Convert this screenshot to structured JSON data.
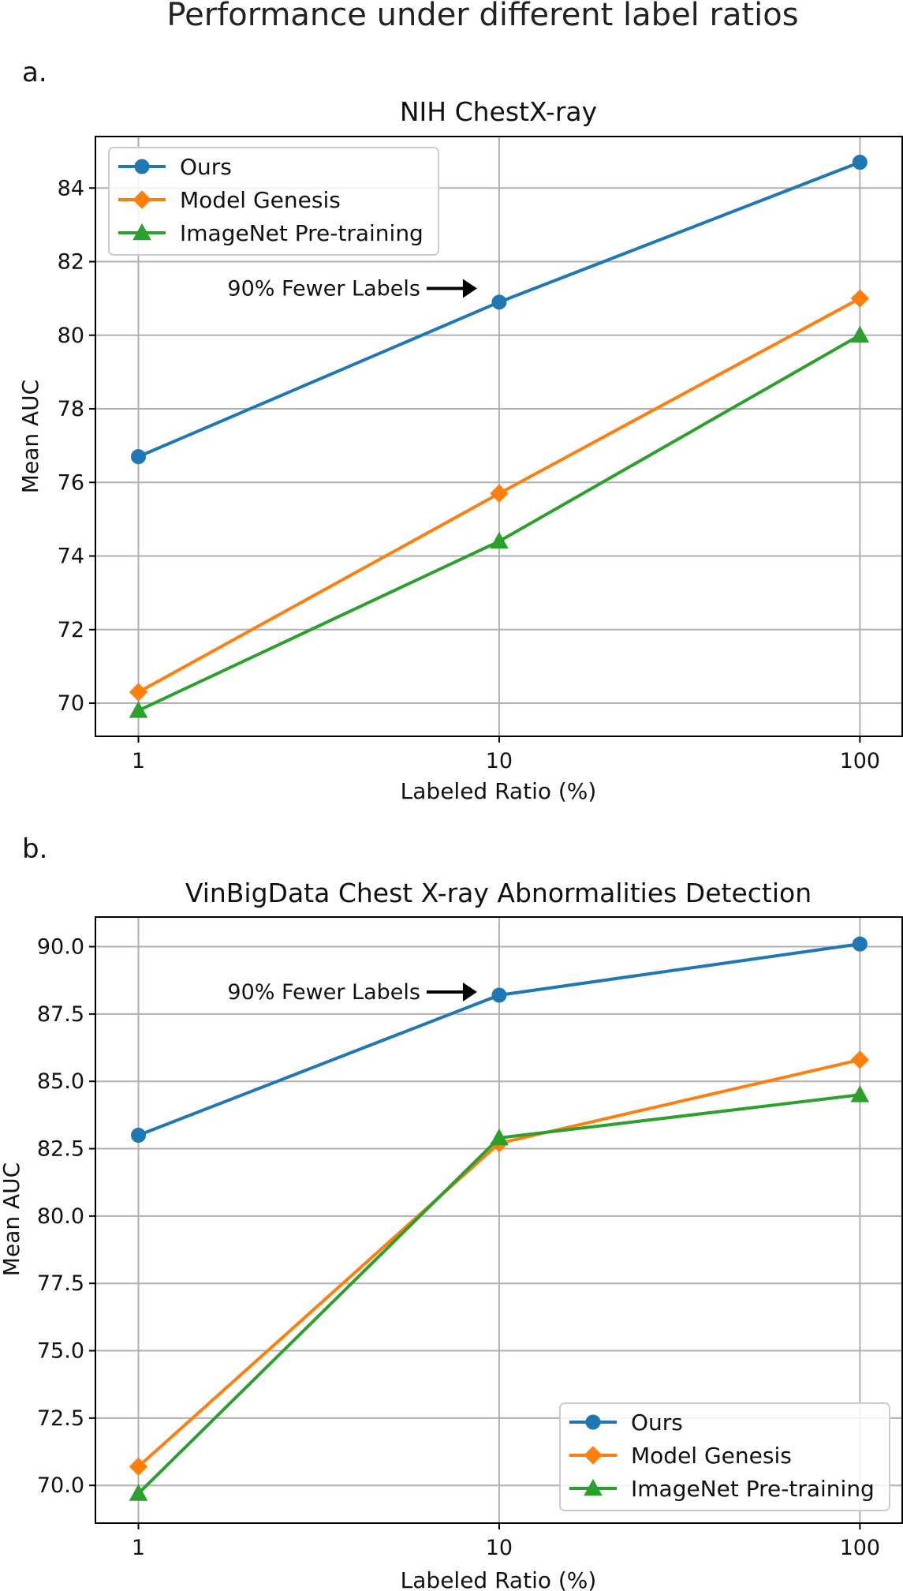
{
  "figure": {
    "title": "Performance under different label ratios"
  },
  "chart_data": [
    {
      "panel_label": "a.",
      "type": "line",
      "title": "NIH ChestX-ray",
      "xlabel": "Labeled Ratio (%)",
      "ylabel": "Mean AUC",
      "x_scale": "log",
      "x": [
        1,
        10,
        100
      ],
      "x_ticks": [
        "1",
        "10",
        "100"
      ],
      "xlim": [
        0.76,
        131
      ],
      "y_ticks": [
        70,
        72,
        74,
        76,
        78,
        80,
        82,
        84
      ],
      "y_tick_decimals": 0,
      "ylim": [
        69.1,
        85.4
      ],
      "grid": true,
      "legend_position": "upper-left",
      "series": [
        {
          "name": "Ours",
          "marker": "circle",
          "color": "#1f77b4",
          "values": [
            76.7,
            80.9,
            84.7
          ]
        },
        {
          "name": "Model Genesis",
          "marker": "diamond",
          "color": "#ff7f0e",
          "values": [
            70.3,
            75.7,
            81.0
          ]
        },
        {
          "name": "ImageNet Pre-training",
          "marker": "triangle",
          "color": "#2ca02c",
          "values": [
            69.8,
            74.4,
            80.0
          ]
        }
      ],
      "annotation": {
        "text": "90% Fewer Labels",
        "x": 10,
        "y": 81.1
      }
    },
    {
      "panel_label": "b.",
      "type": "line",
      "title": "VinBigData Chest X-ray Abnormalities Detection",
      "xlabel": "Labeled Ratio (%)",
      "ylabel": "Mean AUC",
      "x_scale": "log",
      "x": [
        1,
        10,
        100
      ],
      "x_ticks": [
        "1",
        "10",
        "100"
      ],
      "xlim": [
        0.76,
        131
      ],
      "y_ticks": [
        70.0,
        72.5,
        75.0,
        77.5,
        80.0,
        82.5,
        85.0,
        87.5,
        90.0
      ],
      "y_tick_decimals": 1,
      "ylim": [
        68.6,
        91.1
      ],
      "grid": true,
      "legend_position": "lower-right",
      "series": [
        {
          "name": "Ours",
          "marker": "circle",
          "color": "#1f77b4",
          "values": [
            83.0,
            88.2,
            90.1
          ]
        },
        {
          "name": "Model Genesis",
          "marker": "diamond",
          "color": "#ff7f0e",
          "values": [
            70.7,
            82.7,
            85.8
          ]
        },
        {
          "name": "ImageNet Pre-training",
          "marker": "triangle",
          "color": "#2ca02c",
          "values": [
            69.7,
            82.9,
            84.5
          ]
        }
      ],
      "annotation": {
        "text": "90% Fewer Labels",
        "x": 10,
        "y": 88.2
      }
    }
  ]
}
